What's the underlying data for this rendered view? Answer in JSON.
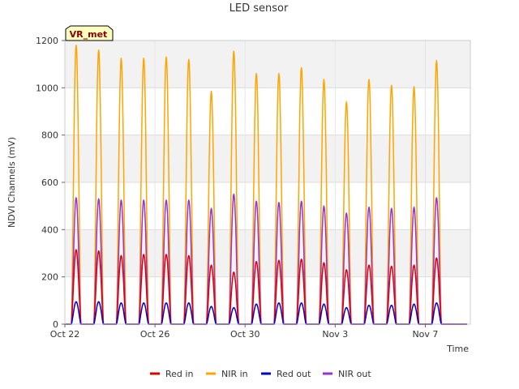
{
  "chart_data": {
    "type": "line",
    "title": "LED sensor",
    "xlabel": "Time",
    "ylabel": "NDVI Channels (mV)",
    "ylim": [
      0,
      1200
    ],
    "yticks": [
      0,
      200,
      400,
      600,
      800,
      1000,
      1200
    ],
    "xlim": [
      "2023-10-22",
      "2023-11-09"
    ],
    "xticks": [
      "Oct 22",
      "Oct 26",
      "Oct 30",
      "Nov 3",
      "Nov 7"
    ],
    "xtick_dates": [
      "2023-10-22",
      "2023-10-26",
      "2023-10-30",
      "2023-11-03",
      "2023-11-07"
    ],
    "grid": true,
    "legend_position": "bottom",
    "badge": "VR_met",
    "daily_peak_dates": [
      "2023-10-22",
      "2023-10-23",
      "2023-10-24",
      "2023-10-25",
      "2023-10-26",
      "2023-10-27",
      "2023-10-28",
      "2023-10-29",
      "2023-10-30",
      "2023-10-31",
      "2023-11-01",
      "2023-11-02",
      "2023-11-03",
      "2023-11-04",
      "2023-11-05",
      "2023-11-06",
      "2023-11-07",
      "2023-11-08"
    ],
    "series": [
      {
        "name": "Red in",
        "color": "#dd0000",
        "daily_peaks": [
          315,
          310,
          290,
          295,
          295,
          290,
          250,
          220,
          265,
          270,
          275,
          260,
          230,
          250,
          245,
          250,
          280,
          0
        ]
      },
      {
        "name": "NIR in",
        "color": "#ffa500",
        "daily_peaks": [
          1180,
          1160,
          1125,
          1125,
          1130,
          1120,
          985,
          1155,
          1060,
          1060,
          1085,
          1035,
          940,
          1035,
          1010,
          1005,
          1115,
          0
        ]
      },
      {
        "name": "Red out",
        "color": "#0000cc",
        "daily_peaks": [
          95,
          95,
          90,
          90,
          90,
          90,
          75,
          70,
          85,
          90,
          90,
          85,
          70,
          80,
          80,
          85,
          90,
          0
        ]
      },
      {
        "name": "NIR out",
        "color": "#9a32cd",
        "daily_peaks": [
          535,
          530,
          525,
          525,
          525,
          525,
          490,
          550,
          520,
          515,
          520,
          500,
          470,
          495,
          490,
          495,
          535,
          0
        ]
      }
    ]
  }
}
